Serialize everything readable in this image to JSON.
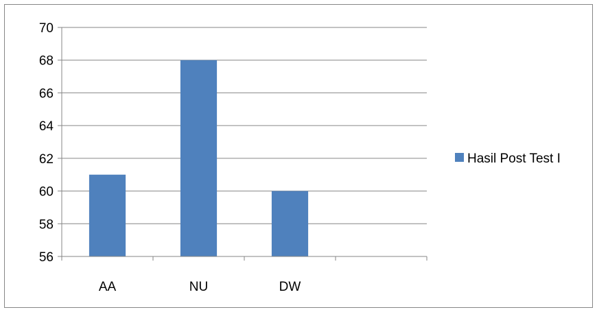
{
  "chart_data": {
    "type": "bar",
    "categories": [
      "AA",
      "NU",
      "DW",
      ""
    ],
    "series": [
      {
        "name": "Hasil Post Test I",
        "values": [
          61,
          68,
          60,
          null
        ],
        "color": "#4F81BD"
      }
    ],
    "ylim": [
      56,
      70
    ],
    "yticks": [
      56,
      58,
      60,
      62,
      64,
      66,
      68,
      70
    ],
    "grid": true,
    "legend": "right"
  }
}
